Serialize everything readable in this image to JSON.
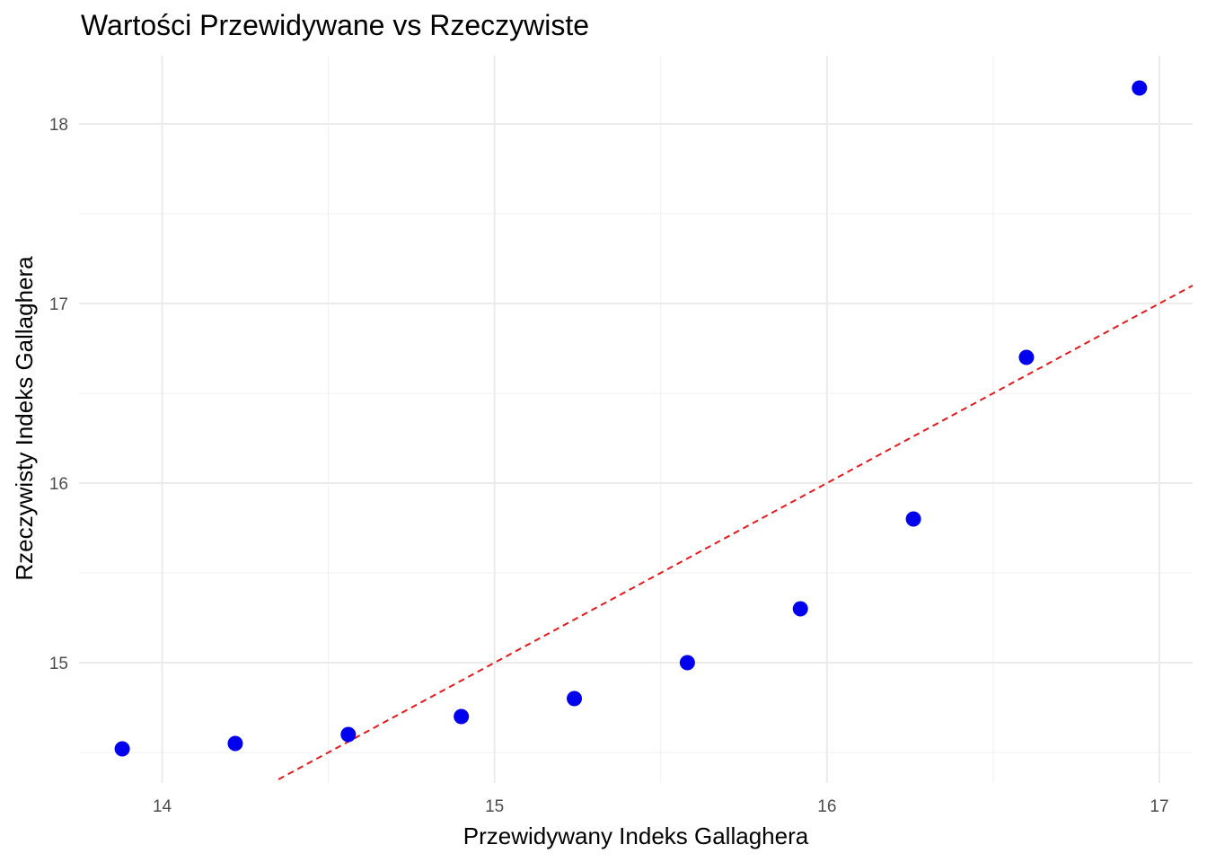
{
  "chart_data": {
    "type": "scatter",
    "title": "Wartości Przewidywane vs Rzeczywiste",
    "xlabel": "Przewidywany Indeks Gallaghera",
    "ylabel": "Rzeczywisty Indeks Gallaghera",
    "xlim": [
      13.75,
      17.1
    ],
    "ylim": [
      14.33,
      18.38
    ],
    "x_ticks": [
      "14",
      "15",
      "16",
      "17"
    ],
    "y_ticks": [
      "15",
      "16",
      "17",
      "18"
    ],
    "grid": true,
    "points": {
      "x": [
        13.88,
        14.22,
        14.56,
        14.9,
        15.24,
        15.58,
        15.92,
        16.26,
        16.6,
        16.94
      ],
      "y": [
        14.52,
        14.55,
        14.6,
        14.7,
        14.8,
        15.0,
        15.3,
        15.8,
        16.7,
        18.2
      ],
      "color": "#0000ee"
    },
    "reference_line": {
      "type": "y = x",
      "style": "dashed",
      "color": "#e31a1c",
      "from": 14.35,
      "to": 17.1
    }
  }
}
